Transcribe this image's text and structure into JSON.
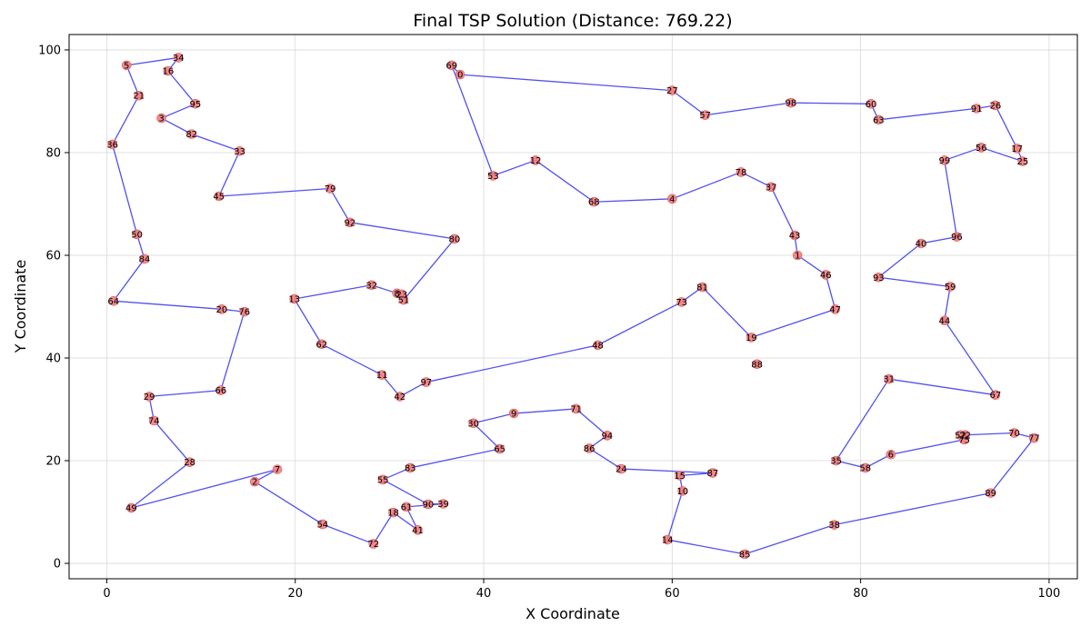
{
  "chart_data": {
    "type": "scatter",
    "title": "Final TSP Solution (Distance: 769.22)",
    "xlabel": "X Coordinate",
    "ylabel": "Y Coordinate",
    "xlim": [
      -4,
      103
    ],
    "ylim": [
      -3,
      103
    ],
    "xticks": [
      0,
      20,
      40,
      60,
      80,
      100
    ],
    "yticks": [
      0,
      20,
      40,
      60,
      80,
      100
    ],
    "grid": true,
    "colors": {
      "route": "#3333ee",
      "node": "#f08080",
      "node_edge": "#e06060"
    },
    "cities": [
      {
        "id": 0,
        "x": 37.5,
        "y": 95.2
      },
      {
        "id": 1,
        "x": 73.3,
        "y": 60.0
      },
      {
        "id": 2,
        "x": 15.7,
        "y": 15.9
      },
      {
        "id": 3,
        "x": 5.8,
        "y": 86.7
      },
      {
        "id": 4,
        "x": 60.0,
        "y": 71.0
      },
      {
        "id": 5,
        "x": 2.1,
        "y": 97.0
      },
      {
        "id": 6,
        "x": 83.2,
        "y": 21.2
      },
      {
        "id": 7,
        "x": 18.1,
        "y": 18.3
      },
      {
        "id": 8,
        "x": 30.8,
        "y": 52.6
      },
      {
        "id": 9,
        "x": 43.2,
        "y": 29.2
      },
      {
        "id": 10,
        "x": 61.1,
        "y": 14.1
      },
      {
        "id": 11,
        "x": 29.2,
        "y": 36.7
      },
      {
        "id": 12,
        "x": 45.5,
        "y": 78.5
      },
      {
        "id": 13,
        "x": 19.9,
        "y": 51.5
      },
      {
        "id": 14,
        "x": 59.5,
        "y": 4.6
      },
      {
        "id": 15,
        "x": 60.8,
        "y": 17.1
      },
      {
        "id": 16,
        "x": 6.5,
        "y": 95.9
      },
      {
        "id": 17,
        "x": 96.6,
        "y": 80.8
      },
      {
        "id": 18,
        "x": 30.4,
        "y": 9.9
      },
      {
        "id": 19,
        "x": 68.4,
        "y": 44.0
      },
      {
        "id": 20,
        "x": 12.2,
        "y": 49.5
      },
      {
        "id": 21,
        "x": 3.4,
        "y": 91.1
      },
      {
        "id": 22,
        "x": 91.1,
        "y": 25.0
      },
      {
        "id": 23,
        "x": 31.3,
        "y": 52.4
      },
      {
        "id": 24,
        "x": 54.6,
        "y": 18.4
      },
      {
        "id": 25,
        "x": 97.2,
        "y": 78.3
      },
      {
        "id": 26,
        "x": 94.3,
        "y": 89.2
      },
      {
        "id": 27,
        "x": 60.0,
        "y": 92.1
      },
      {
        "id": 28,
        "x": 8.8,
        "y": 19.7
      },
      {
        "id": 29,
        "x": 4.5,
        "y": 32.5
      },
      {
        "id": 30,
        "x": 38.9,
        "y": 27.3
      },
      {
        "id": 31,
        "x": 83.0,
        "y": 35.9
      },
      {
        "id": 32,
        "x": 28.1,
        "y": 54.2
      },
      {
        "id": 33,
        "x": 14.1,
        "y": 80.3
      },
      {
        "id": 34,
        "x": 7.6,
        "y": 98.5
      },
      {
        "id": 35,
        "x": 77.4,
        "y": 20.0
      },
      {
        "id": 36,
        "x": 0.6,
        "y": 81.6
      },
      {
        "id": 37,
        "x": 70.5,
        "y": 73.3
      },
      {
        "id": 38,
        "x": 77.2,
        "y": 7.5
      },
      {
        "id": 39,
        "x": 35.7,
        "y": 11.6
      },
      {
        "id": 40,
        "x": 86.4,
        "y": 62.3
      },
      {
        "id": 41,
        "x": 33.0,
        "y": 6.5
      },
      {
        "id": 42,
        "x": 31.1,
        "y": 32.5
      },
      {
        "id": 43,
        "x": 73.0,
        "y": 63.9
      },
      {
        "id": 44,
        "x": 88.9,
        "y": 47.3
      },
      {
        "id": 45,
        "x": 11.9,
        "y": 71.5
      },
      {
        "id": 46,
        "x": 76.3,
        "y": 56.2
      },
      {
        "id": 47,
        "x": 77.3,
        "y": 49.5
      },
      {
        "id": 48,
        "x": 52.1,
        "y": 42.5
      },
      {
        "id": 49,
        "x": 2.6,
        "y": 10.8
      },
      {
        "id": 50,
        "x": 3.2,
        "y": 64.1
      },
      {
        "id": 51,
        "x": 31.5,
        "y": 51.3
      },
      {
        "id": 52,
        "x": 90.6,
        "y": 25.0
      },
      {
        "id": 53,
        "x": 41.0,
        "y": 75.5
      },
      {
        "id": 54,
        "x": 22.9,
        "y": 7.6
      },
      {
        "id": 55,
        "x": 29.3,
        "y": 16.3
      },
      {
        "id": 56,
        "x": 92.8,
        "y": 81.0
      },
      {
        "id": 57,
        "x": 63.5,
        "y": 87.3
      },
      {
        "id": 58,
        "x": 80.5,
        "y": 18.6
      },
      {
        "id": 59,
        "x": 89.5,
        "y": 53.9
      },
      {
        "id": 60,
        "x": 81.1,
        "y": 89.5
      },
      {
        "id": 61,
        "x": 31.8,
        "y": 11.0
      },
      {
        "id": 62,
        "x": 22.8,
        "y": 42.7
      },
      {
        "id": 63,
        "x": 81.9,
        "y": 86.4
      },
      {
        "id": 64,
        "x": 0.7,
        "y": 51.1
      },
      {
        "id": 65,
        "x": 41.7,
        "y": 22.3
      },
      {
        "id": 66,
        "x": 12.1,
        "y": 33.7
      },
      {
        "id": 67,
        "x": 94.3,
        "y": 32.8
      },
      {
        "id": 68,
        "x": 51.7,
        "y": 70.4
      },
      {
        "id": 69,
        "x": 36.6,
        "y": 97.0
      },
      {
        "id": 70,
        "x": 96.3,
        "y": 25.4
      },
      {
        "id": 71,
        "x": 49.8,
        "y": 30.1
      },
      {
        "id": 72,
        "x": 28.3,
        "y": 3.8
      },
      {
        "id": 73,
        "x": 61.0,
        "y": 50.9
      },
      {
        "id": 74,
        "x": 5.0,
        "y": 27.8
      },
      {
        "id": 75,
        "x": 91.0,
        "y": 24.1
      },
      {
        "id": 76,
        "x": 14.6,
        "y": 49.0
      },
      {
        "id": 77,
        "x": 98.4,
        "y": 24.4
      },
      {
        "id": 78,
        "x": 67.3,
        "y": 76.2
      },
      {
        "id": 79,
        "x": 23.7,
        "y": 73.0
      },
      {
        "id": 80,
        "x": 36.9,
        "y": 63.2
      },
      {
        "id": 81,
        "x": 63.2,
        "y": 53.8
      },
      {
        "id": 82,
        "x": 9.0,
        "y": 83.6
      },
      {
        "id": 83,
        "x": 32.2,
        "y": 18.6
      },
      {
        "id": 84,
        "x": 4.0,
        "y": 59.3
      },
      {
        "id": 85,
        "x": 67.7,
        "y": 1.8
      },
      {
        "id": 86,
        "x": 51.2,
        "y": 22.4
      },
      {
        "id": 87,
        "x": 64.3,
        "y": 17.6
      },
      {
        "id": 88,
        "x": 69.0,
        "y": 38.8
      },
      {
        "id": 89,
        "x": 93.8,
        "y": 13.7
      },
      {
        "id": 90,
        "x": 34.1,
        "y": 11.5
      },
      {
        "id": 91,
        "x": 92.3,
        "y": 88.6
      },
      {
        "id": 92,
        "x": 25.8,
        "y": 66.4
      },
      {
        "id": 93,
        "x": 81.9,
        "y": 55.7
      },
      {
        "id": 94,
        "x": 53.1,
        "y": 24.9
      },
      {
        "id": 95,
        "x": 9.4,
        "y": 89.5
      },
      {
        "id": 96,
        "x": 90.2,
        "y": 63.6
      },
      {
        "id": 97,
        "x": 33.9,
        "y": 35.3
      },
      {
        "id": 98,
        "x": 72.6,
        "y": 89.7
      },
      {
        "id": 99,
        "x": 88.9,
        "y": 78.5
      }
    ],
    "route": [
      0,
      27,
      57,
      98,
      60,
      63,
      91,
      26,
      17,
      25,
      56,
      99,
      96,
      40,
      93,
      59,
      44,
      67,
      31,
      35,
      58,
      6,
      75,
      22,
      70,
      77,
      89,
      38,
      85,
      14,
      10,
      15,
      87,
      24,
      86,
      94,
      71,
      9,
      30,
      65,
      83,
      55,
      90,
      39,
      61,
      41,
      18,
      72,
      54,
      2,
      7,
      49,
      28,
      74,
      29,
      66,
      76,
      20,
      64,
      84,
      50,
      36,
      21,
      5,
      34,
      16,
      95,
      3,
      82,
      33,
      45,
      79,
      92,
      80,
      51,
      8,
      32,
      13,
      62,
      11,
      42,
      97,
      48,
      73,
      81,
      19,
      47,
      46,
      1,
      43,
      37,
      78,
      4,
      68,
      12,
      53,
      69,
      0
    ]
  }
}
